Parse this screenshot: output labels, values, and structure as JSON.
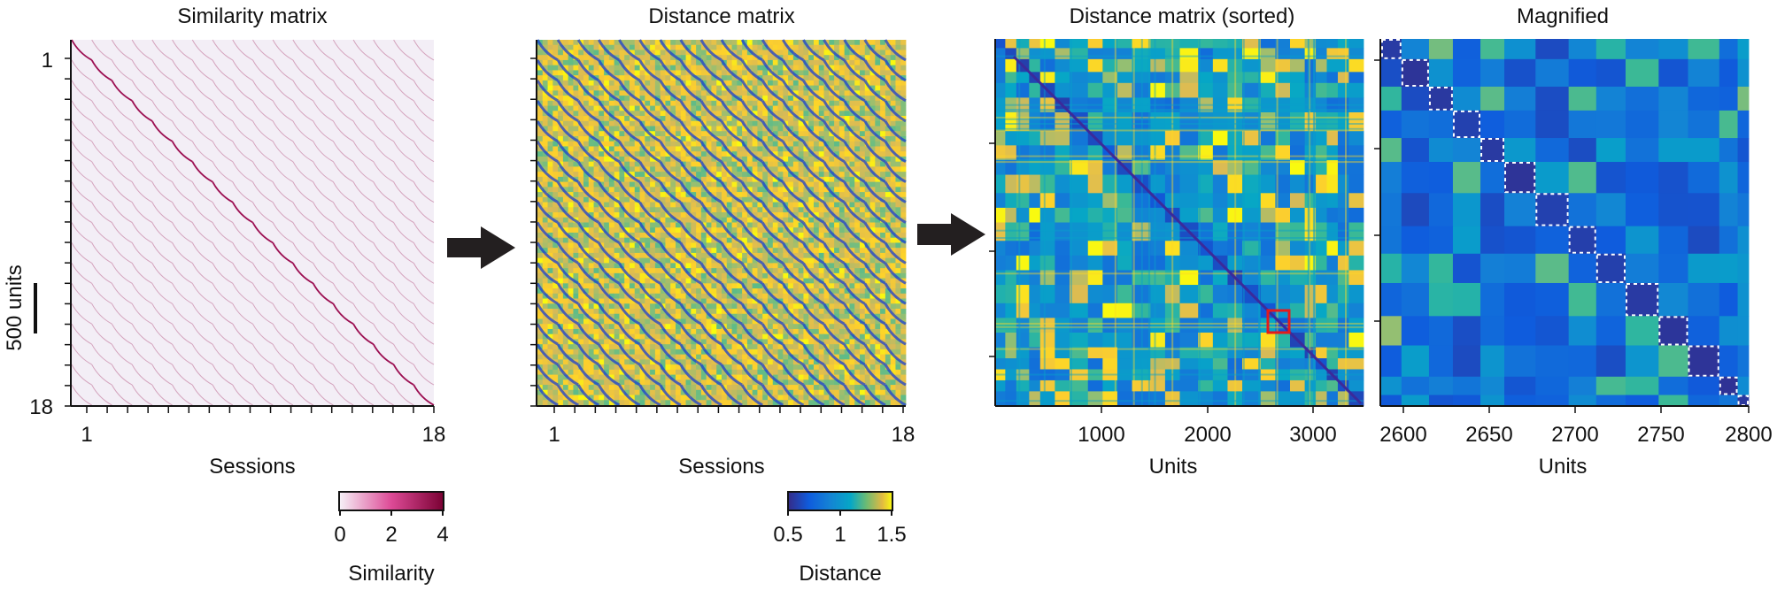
{
  "panels": [
    {
      "title": "Similarity matrix",
      "type": "heatmap",
      "colormap": "similarity",
      "x_ticks": [
        "1",
        "18"
      ],
      "y_ticks": [
        "1",
        "18"
      ],
      "xlabel": "Sessions",
      "scale_bar_label": "500 units",
      "colorbar": {
        "ticks": [
          "0",
          "2",
          "4"
        ],
        "label": "Similarity",
        "range": [
          0,
          4
        ]
      }
    },
    {
      "title": "Distance matrix",
      "type": "heatmap",
      "colormap": "parula",
      "x_ticks": [
        "1",
        "18"
      ],
      "xlabel": "Sessions",
      "colorbar": {
        "ticks": [
          "0.5",
          "1",
          "1.5"
        ],
        "label": "Distance",
        "range": [
          0.5,
          1.5
        ]
      }
    },
    {
      "title": "Distance matrix (sorted)",
      "type": "heatmap",
      "colormap": "parula",
      "x_ticks": [
        "1000",
        "2000",
        "3000"
      ],
      "xlabel": "Units",
      "highlight_box": {
        "color": "#e41a1c",
        "x_range": [
          2600,
          2800
        ]
      }
    },
    {
      "title": "Magnified",
      "type": "heatmap",
      "colormap": "parula",
      "x_ticks": [
        "2600",
        "2650",
        "2700",
        "2750",
        "2800"
      ],
      "xlabel": "Units",
      "dashed_boxes": "white"
    }
  ],
  "arrows": [
    "arrow-1",
    "arrow-2"
  ],
  "chart_data": [
    {
      "type": "heatmap",
      "title": "Similarity matrix",
      "xlabel": "Sessions",
      "ylabel": "",
      "x_range": [
        1,
        18
      ],
      "y_range": [
        1,
        18
      ],
      "scale_bar": "500 units",
      "color_range": [
        0,
        4
      ],
      "color_label": "Similarity"
    },
    {
      "type": "heatmap",
      "title": "Distance matrix",
      "xlabel": "Sessions",
      "x_range": [
        1,
        18
      ],
      "color_range": [
        0.5,
        1.5
      ],
      "color_label": "Distance"
    },
    {
      "type": "heatmap",
      "title": "Distance matrix (sorted)",
      "xlabel": "Units",
      "x_ticks": [
        1000,
        2000,
        3000
      ],
      "highlight_box_units": [
        2600,
        2800
      ]
    },
    {
      "type": "heatmap",
      "title": "Magnified",
      "xlabel": "Units",
      "x_ticks": [
        2600,
        2650,
        2700,
        2750,
        2800
      ]
    }
  ]
}
